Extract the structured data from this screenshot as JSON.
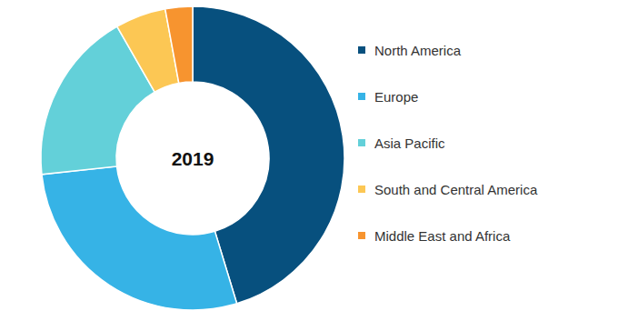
{
  "chart_data": {
    "type": "pie",
    "title": "2019",
    "categories": [
      "North America",
      "Europe",
      "Asia Pacific",
      "South and Central America",
      "Middle East and Africa"
    ],
    "values": [
      45.3,
      28.0,
      18.4,
      5.4,
      2.9
    ],
    "colors": [
      "#07507e",
      "#36b3e6",
      "#63d0d9",
      "#fcc754",
      "#f7942f"
    ],
    "legend": "right"
  }
}
